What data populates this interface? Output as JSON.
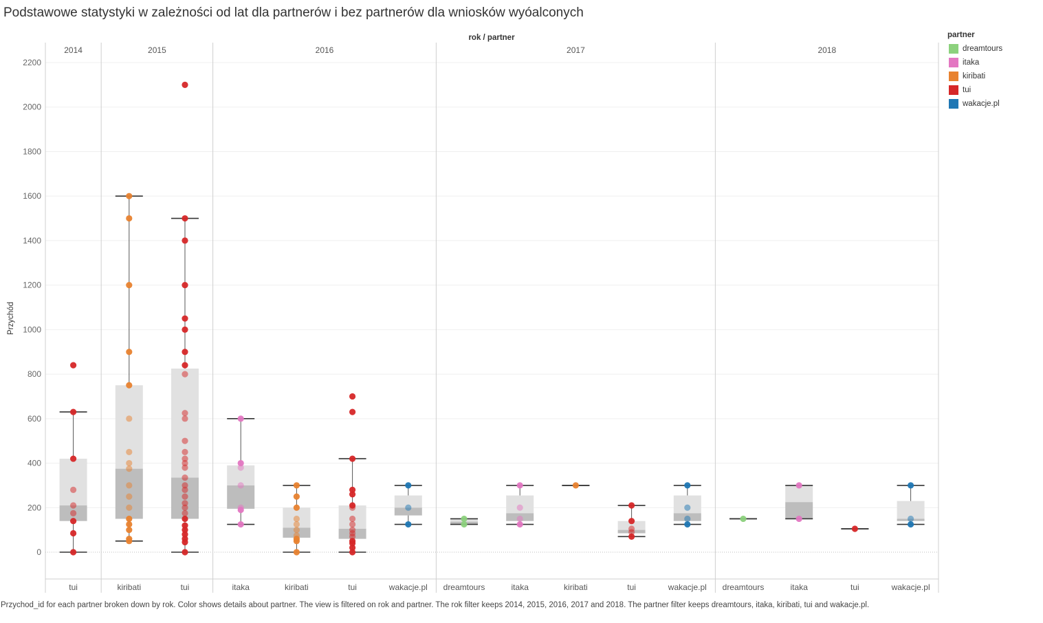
{
  "title": "Podstawowe statystyki w zależności od lat dla partnerów i bez partnerów dla wniosków wyóalconych",
  "caption": "Przychod_id for each partner broken down by rok.  Color shows details about partner. The view is filtered on rok and partner. The rok filter keeps 2014, 2015, 2016, 2017 and 2018. The partner filter keeps dreamtours, itaka, kiribati, tui and wakacje.pl.",
  "legend": {
    "title": "partner",
    "items": [
      {
        "label": "dreamtours",
        "color": "#8cd17d"
      },
      {
        "label": "itaka",
        "color": "#e377c2"
      },
      {
        "label": "kiribati",
        "color": "#e8822f"
      },
      {
        "label": "tui",
        "color": "#d62728"
      },
      {
        "label": "wakacje.pl",
        "color": "#1f77b4"
      }
    ]
  },
  "chart_data": {
    "type": "boxplot",
    "header": "rok / partner",
    "ylabel": "Przychód",
    "ylim": [
      -120,
      2250
    ],
    "yticks": [
      0,
      200,
      400,
      600,
      800,
      1000,
      1200,
      1400,
      1600,
      1800,
      2000,
      2200
    ],
    "grid": true,
    "legend_position": "right",
    "years": [
      "2014",
      "2015",
      "2016",
      "2017",
      "2018"
    ],
    "groups": [
      {
        "year": "2014",
        "partner": "tui",
        "label": "tui",
        "color": "#d62728",
        "q1": 140,
        "median": 210,
        "q3": 420,
        "whisker_low": 0,
        "whisker_high": 630,
        "points": [
          840,
          630,
          420,
          280,
          210,
          175,
          140,
          85,
          0
        ]
      },
      {
        "year": "2015",
        "partner": "kiribati",
        "label": "kiribati",
        "color": "#e8822f",
        "q1": 150,
        "median": 375,
        "q3": 750,
        "whisker_low": 50,
        "whisker_high": 1600,
        "points": [
          1600,
          1500,
          1200,
          900,
          750,
          600,
          450,
          400,
          375,
          300,
          250,
          200,
          150,
          125,
          100,
          60,
          50
        ]
      },
      {
        "year": "2015",
        "partner": "tui",
        "label": "tui",
        "color": "#d62728",
        "q1": 150,
        "median": 335,
        "q3": 825,
        "whisker_low": 0,
        "whisker_high": 1500,
        "points": [
          2100,
          1500,
          1400,
          1200,
          1050,
          1000,
          900,
          840,
          800,
          625,
          600,
          500,
          450,
          420,
          400,
          380,
          335,
          300,
          280,
          250,
          220,
          200,
          175,
          150,
          120,
          100,
          80,
          60,
          45,
          0
        ]
      },
      {
        "year": "2016",
        "partner": "itaka",
        "label": "itaka",
        "color": "#e377c2",
        "q1": 195,
        "median": 300,
        "q3": 390,
        "whisker_low": 125,
        "whisker_high": 600,
        "points": [
          600,
          400,
          380,
          300,
          200,
          190,
          125
        ]
      },
      {
        "year": "2016",
        "partner": "kiribati",
        "label": "kiribati",
        "color": "#e8822f",
        "q1": 65,
        "median": 110,
        "q3": 200,
        "whisker_low": 0,
        "whisker_high": 300,
        "points": [
          300,
          250,
          200,
          150,
          125,
          100,
          75,
          60,
          50,
          0
        ]
      },
      {
        "year": "2016",
        "partner": "tui",
        "label": "tui",
        "color": "#d62728",
        "q1": 60,
        "median": 105,
        "q3": 210,
        "whisker_low": 0,
        "whisker_high": 420,
        "points": [
          700,
          630,
          420,
          280,
          260,
          210,
          200,
          150,
          125,
          100,
          85,
          70,
          50,
          40,
          20,
          0
        ]
      },
      {
        "year": "2016",
        "partner": "wakacje.pl",
        "label": "wakacje.pl",
        "color": "#1f77b4",
        "q1": 165,
        "median": 200,
        "q3": 255,
        "whisker_low": 125,
        "whisker_high": 300,
        "points": [
          300,
          200,
          125
        ]
      },
      {
        "year": "2017",
        "partner": "dreamtours",
        "label": "dreamtours",
        "color": "#8cd17d",
        "q1": 125,
        "median": 137,
        "q3": 150,
        "whisker_low": 125,
        "whisker_high": 150,
        "points": [
          150,
          125
        ]
      },
      {
        "year": "2017",
        "partner": "itaka",
        "label": "itaka",
        "color": "#e377c2",
        "q1": 140,
        "median": 175,
        "q3": 255,
        "whisker_low": 125,
        "whisker_high": 300,
        "points": [
          300,
          200,
          150,
          125
        ]
      },
      {
        "year": "2017",
        "partner": "kiribati",
        "label": "kiribati",
        "color": "#e8822f",
        "q1": 300,
        "median": 300,
        "q3": 300,
        "whisker_low": 300,
        "whisker_high": 300,
        "points": [
          300
        ]
      },
      {
        "year": "2017",
        "partner": "tui",
        "label": "tui",
        "color": "#d62728",
        "q1": 85,
        "median": 100,
        "q3": 140,
        "whisker_low": 70,
        "whisker_high": 210,
        "points": [
          210,
          140,
          105,
          90,
          70
        ]
      },
      {
        "year": "2017",
        "partner": "wakacje.pl",
        "label": "wakacje.pl",
        "color": "#1f77b4",
        "q1": 140,
        "median": 175,
        "q3": 255,
        "whisker_low": 125,
        "whisker_high": 300,
        "points": [
          300,
          200,
          150,
          125
        ]
      },
      {
        "year": "2018",
        "partner": "dreamtours",
        "label": "dreamtours",
        "color": "#8cd17d",
        "q1": 150,
        "median": 150,
        "q3": 150,
        "whisker_low": 150,
        "whisker_high": 150,
        "points": [
          150
        ]
      },
      {
        "year": "2018",
        "partner": "itaka",
        "label": "itaka",
        "color": "#e377c2",
        "q1": 150,
        "median": 225,
        "q3": 300,
        "whisker_low": 150,
        "whisker_high": 300,
        "points": [
          300,
          150
        ]
      },
      {
        "year": "2018",
        "partner": "tui",
        "label": "tui",
        "color": "#d62728",
        "q1": 105,
        "median": 105,
        "q3": 105,
        "whisker_low": 105,
        "whisker_high": 105,
        "points": [
          105
        ]
      },
      {
        "year": "2018",
        "partner": "wakacje.pl",
        "label": "wakacje.pl",
        "color": "#1f77b4",
        "q1": 140,
        "median": 150,
        "q3": 230,
        "whisker_low": 125,
        "whisker_high": 300,
        "points": [
          300,
          150,
          125
        ]
      }
    ]
  }
}
